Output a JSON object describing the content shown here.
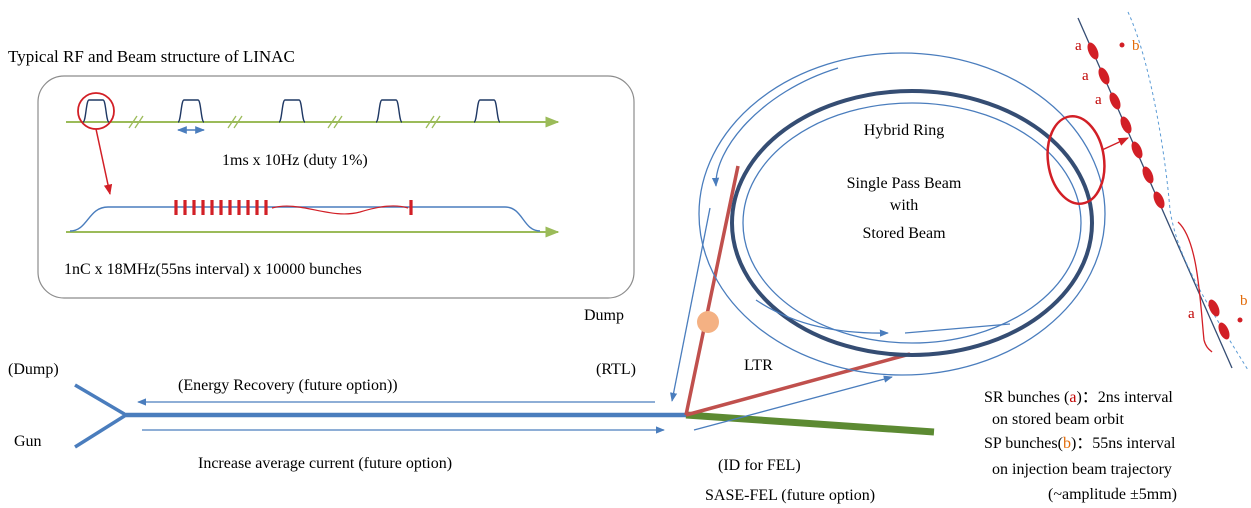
{
  "inset": {
    "title": "Typical RF and Beam structure of LINAC",
    "pulse_spec": "1ms x 10Hz (duty 1%)",
    "bunch_spec": "1nC x 18MHz(55ns interval) x 10000 bunches"
  },
  "labels": {
    "dump_left": "(Dump)",
    "gun": "Gun",
    "energy_recovery": "(Energy Recovery (future option))",
    "increase_current": "Increase average current (future option)",
    "rtl": "(RTL)",
    "dump_top": "Dump",
    "ltr": "LTR",
    "id_fel": "(ID for FEL)",
    "sase_fel": "SASE-FEL (future option)",
    "ring_title": "Hybrid Ring",
    "ring_line1": "Single Pass Beam",
    "ring_line2": "with",
    "ring_line3": "Stored Beam"
  },
  "zoom": {
    "label_a": "a",
    "label_b": "b"
  },
  "legend": {
    "sr_prefix": "SR bunches (",
    "sr_letter": "a",
    "sr_suffix": ")：2ns interval",
    "sr_line2": "on stored beam orbit",
    "sp_prefix": "SP bunches(",
    "sp_letter": "b",
    "sp_suffix": ")：55ns interval",
    "sp_line2": "on injection beam trajectory",
    "sp_line3": "(~amplitude ±5mm)"
  },
  "colors": {
    "beam_blue": "#4a7dbd",
    "ring_dark": "#354d73",
    "red": "#d21f26",
    "transport_red": "#c0504d",
    "fel_green": "#5c8a32",
    "axis_green": "#9bbb59",
    "label_red": "#c00000",
    "label_orange": "#e36c0a",
    "dump_dot": "#f4b183"
  }
}
